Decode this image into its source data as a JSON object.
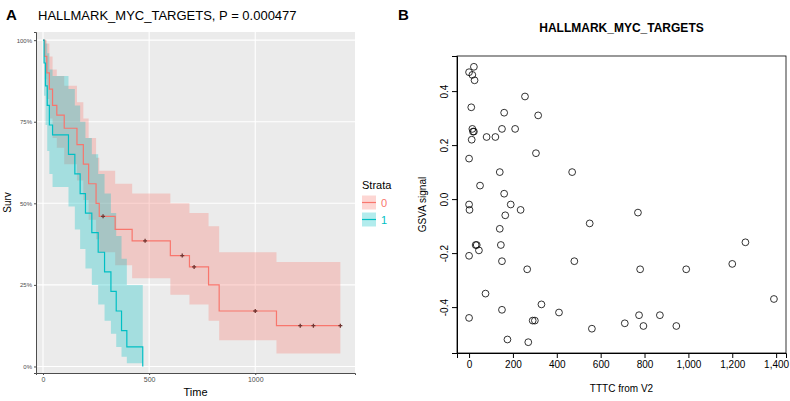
{
  "chart_data": [
    {
      "type": "survival",
      "panel_label": "A",
      "title": "HALLMARK_MYC_TARGETS, P = 0.000477",
      "x_label": "Time",
      "y_label": "Surv",
      "xlim": [
        -33,
        1470
      ],
      "xticks": [
        0,
        500,
        1000
      ],
      "ylim": [
        -2,
        102.5
      ],
      "yticks": [
        {
          "value": 0,
          "label": "0%"
        },
        {
          "value": 25,
          "label": "25%"
        },
        {
          "value": 50,
          "label": "50%"
        },
        {
          "value": 75,
          "label": "75%"
        },
        {
          "value": 100,
          "label": "100%"
        }
      ],
      "grid": true,
      "legend": "right",
      "legend_title": "Strata",
      "series": [
        {
          "name": "0",
          "color": "#F8766D",
          "line_style": "step",
          "x": [
            0,
            8,
            18,
            30,
            45,
            65,
            100,
            160,
            190,
            215,
            250,
            265,
            340,
            420,
            600,
            690,
            780,
            830,
            1100,
            1401
          ],
          "values": [
            100,
            95,
            90,
            85,
            80,
            77,
            73,
            68,
            62,
            56,
            50,
            46,
            42,
            38.5,
            34,
            30.5,
            25,
            17,
            12.5,
            12.5
          ],
          "lower": [
            100,
            88,
            82,
            76,
            70,
            67,
            62,
            57,
            51,
            45,
            39,
            35,
            31,
            27,
            22,
            19,
            14,
            8,
            4,
            4
          ],
          "upper": [
            100,
            100,
            99,
            95,
            91,
            89,
            86,
            81,
            76,
            70,
            64,
            60,
            56,
            53,
            50,
            47,
            43,
            35,
            32,
            32
          ],
          "censor_x": [
            283,
            481,
            656,
            712,
            1000,
            1212,
            1274,
            1401
          ],
          "censor_values": [
            46,
            38.5,
            34,
            30.5,
            17,
            12.5,
            12.5,
            12.5
          ]
        },
        {
          "name": "1",
          "color": "#00BFC4",
          "line_style": "step",
          "x": [
            0,
            5,
            12,
            20,
            30,
            45,
            120,
            150,
            175,
            200,
            230,
            260,
            290,
            320,
            345,
            370,
            395,
            470
          ],
          "values": [
            100,
            93,
            86,
            80,
            74,
            71,
            65,
            59,
            53,
            47,
            41,
            35,
            29,
            23,
            17,
            11,
            6,
            0
          ],
          "lower": [
            100,
            83,
            74,
            66,
            59,
            55,
            49,
            42,
            36,
            30,
            25,
            19,
            14,
            10,
            6,
            3,
            1,
            0
          ],
          "upper": [
            100,
            100,
            99,
            96,
            91,
            89,
            85,
            80,
            75,
            70,
            65,
            59,
            53,
            47,
            40,
            33,
            25,
            0
          ]
        }
      ]
    },
    {
      "type": "scatter",
      "panel_label": "B",
      "title": "HALLMARK_MYC_TARGETS",
      "x_label": "TTTC from V2",
      "y_label": "GSVA signal",
      "color": "#000000",
      "marker": "open-circle",
      "grid": false,
      "xlim": [
        -55,
        1445
      ],
      "xticks": [
        0,
        200,
        400,
        600,
        800,
        {
          "value": 1000,
          "label": "1,000"
        },
        {
          "value": 1200,
          "label": "1,200"
        },
        {
          "value": 1400,
          "label": "1,400"
        }
      ],
      "ylim": [
        -0.57,
        0.53
      ],
      "yticks": [
        -0.4,
        -0.2,
        {
          "value": 0,
          "label": "0.0"
        },
        0.2,
        0.4
      ],
      "x": [
        0,
        22,
        15,
        25,
        10,
        15,
        18,
        22,
        12,
        0,
        0,
        2,
        35,
        30,
        45,
        0,
        0,
        50,
        75,
        80,
        120,
        150,
        160,
        210,
        255,
        305,
        315,
        140,
        140,
        160,
        190,
        165,
        145,
        150,
        150,
        175,
        235,
        265,
        290,
        300,
        270,
        330,
        410,
        470,
        480,
        550,
        560,
        710,
        770,
        775,
        780,
        795,
        870,
        945,
        990,
        1200,
        1260,
        1390
      ],
      "values": [
        0.47,
        0.49,
        0.46,
        0.44,
        0.34,
        0.26,
        0.25,
        0.25,
        0.22,
        0.15,
        -0.02,
        -0.04,
        -0.17,
        -0.17,
        -0.19,
        -0.21,
        -0.44,
        0.05,
        -0.35,
        0.23,
        0.23,
        0.26,
        0.32,
        0.26,
        0.38,
        0.17,
        0.31,
        0.1,
        -0.11,
        0.02,
        -0.02,
        -0.06,
        -0.17,
        -0.23,
        -0.41,
        -0.52,
        -0.04,
        -0.26,
        -0.45,
        -0.45,
        -0.53,
        -0.39,
        -0.42,
        0.1,
        -0.23,
        -0.09,
        -0.48,
        -0.46,
        -0.05,
        -0.43,
        -0.26,
        -0.47,
        -0.43,
        -0.47,
        -0.26,
        -0.24,
        -0.16,
        -0.37
      ]
    }
  ]
}
